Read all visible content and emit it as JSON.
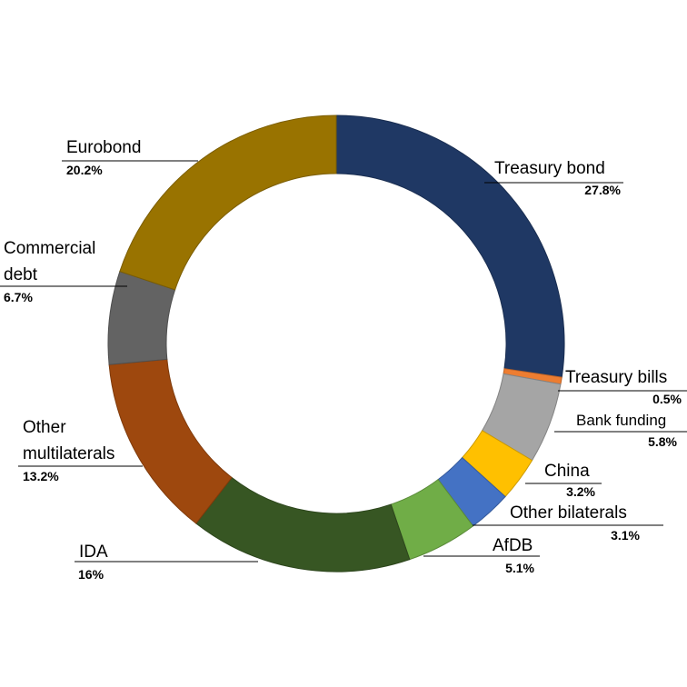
{
  "chart_data": {
    "type": "pie",
    "variant": "donut",
    "title": "",
    "legend": "none",
    "slices": [
      {
        "label": "Treasury bond",
        "value": 27.8,
        "value_label": "27.8%",
        "color": "#1f3864"
      },
      {
        "label": "Treasury bills",
        "value": 0.5,
        "value_label": "0.5%",
        "color": "#ed7d31"
      },
      {
        "label": "Bank funding",
        "value": 5.8,
        "value_label": "5.8%",
        "color": "#a5a5a5"
      },
      {
        "label": "China",
        "value": 3.2,
        "value_label": "3.2%",
        "color": "#ffc000"
      },
      {
        "label": "Other bilaterals",
        "value": 3.1,
        "value_label": "3.1%",
        "color": "#4472c4"
      },
      {
        "label": "AfDB",
        "value": 5.1,
        "value_label": "5.1%",
        "color": "#70ad47"
      },
      {
        "label": "IDA",
        "value": 16,
        "value_label": "16%",
        "color": "#375623"
      },
      {
        "label": "Other multilaterals",
        "value": 13.2,
        "value_label": "13.2%",
        "color": "#9e480e"
      },
      {
        "label": "Commercial debt",
        "value": 6.7,
        "value_label": "6.7%",
        "color": "#636363"
      },
      {
        "label": "Eurobond",
        "value": 20.2,
        "value_label": "20.2%",
        "color": "#997300"
      }
    ]
  }
}
